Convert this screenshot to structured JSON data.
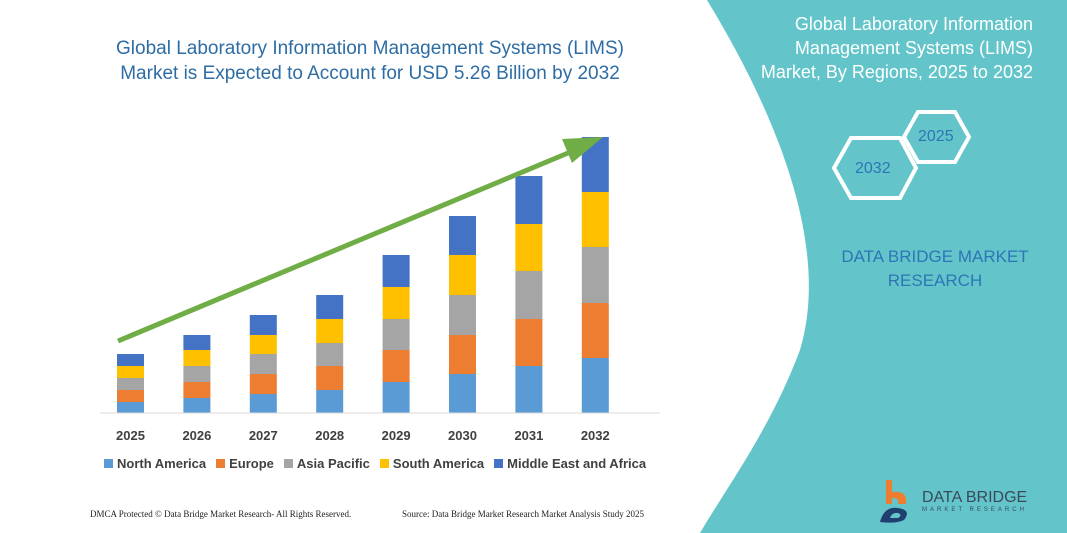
{
  "header": {
    "title_line1": "Global Laboratory Information Management Systems (LIMS)",
    "title_line2": "Market is Expected to Account for USD 5.26 Billion by 2032"
  },
  "side_panel": {
    "title_line1": "Global Laboratory Information",
    "title_line2": "Management Systems (LIMS)",
    "title_line3": "Market, By Regions, 2025 to 2032",
    "hex_start": "2025",
    "hex_end": "2032",
    "brand_line1": "DATA BRIDGE MARKET",
    "brand_line2": "RESEARCH",
    "panel_color": "#63c5ca"
  },
  "logo": {
    "name": "DATA BRIDGE",
    "tagline": "MARKET RESEARCH"
  },
  "footer": {
    "left": "DMCA Protected © Data Bridge Market Research- All Rights Reserved.",
    "right": "Source: Data Bridge Market Research Market Analysis Study 2025"
  },
  "chart_data": {
    "type": "bar",
    "stacked": true,
    "title": "",
    "xlabel": "",
    "ylabel": "",
    "axis_values_shown": false,
    "categories": [
      "2025",
      "2026",
      "2027",
      "2028",
      "2029",
      "2030",
      "2031",
      "2032"
    ],
    "series": [
      {
        "name": "North America",
        "color": "#5b9bd5",
        "values": [
          11,
          15,
          19,
          23,
          31,
          39,
          47,
          55
        ]
      },
      {
        "name": "Europe",
        "color": "#ed7d31",
        "values": [
          12,
          16,
          20,
          24,
          32,
          39,
          47,
          55
        ]
      },
      {
        "name": "Asia Pacific",
        "color": "#a5a5a5",
        "values": [
          12,
          16,
          20,
          23,
          31,
          40,
          48,
          56
        ]
      },
      {
        "name": "South America",
        "color": "#ffc000",
        "values": [
          12,
          16,
          19,
          24,
          32,
          40,
          47,
          55
        ]
      },
      {
        "name": "Middle East and Africa",
        "color": "#4472c4",
        "values": [
          12,
          15,
          20,
          24,
          32,
          39,
          48,
          55
        ]
      }
    ],
    "legend_position": "bottom",
    "grid": false,
    "trend_arrow_color": "#70ad47"
  }
}
